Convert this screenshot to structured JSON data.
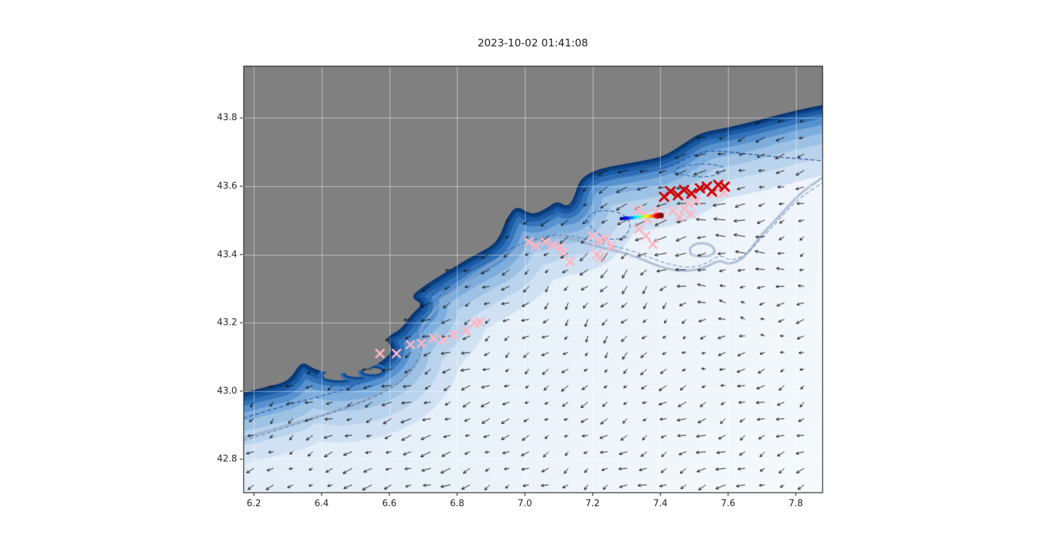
{
  "figure": {
    "background": "#ffffff"
  },
  "chart_data": {
    "type": "scatter",
    "subtype": "geographic-map-with-quiver",
    "title": "2023-10-02 01:41:08",
    "xlabel": "",
    "ylabel": "",
    "xlim": [
      6.169,
      7.878
    ],
    "ylim": [
      42.703,
      43.953
    ],
    "grid": true,
    "legend": "none",
    "xticks": {
      "values": [
        6.2,
        6.4,
        6.6,
        6.8,
        7.0,
        7.2,
        7.4,
        7.6,
        7.8
      ],
      "labels": [
        "6.2",
        "6.4",
        "6.6",
        "6.8",
        "7.0",
        "7.2",
        "7.4",
        "7.6",
        "7.8"
      ]
    },
    "yticks": {
      "values": [
        42.8,
        43.0,
        43.2,
        43.4,
        43.6,
        43.8
      ],
      "labels": [
        "42.8",
        "43.0",
        "43.2",
        "43.4",
        "43.6",
        "43.8"
      ]
    },
    "colors": {
      "land": "#808080",
      "frame": "#1f1f1f",
      "arrow": "#161616",
      "pink": "#ffb6c1",
      "red": "#d10000",
      "grid": "rgba(255,255,255,0.5)",
      "contour_dashed": "#27559e",
      "contour_solid": "#93a7c6",
      "ocean_gradient": [
        "#cfe0f0",
        "#e2edf8",
        "#eff5fb",
        "#f6fafd"
      ],
      "band_ramp": [
        "#cfe1f2",
        "#b9d3ec",
        "#9ec2e4",
        "#7daddc",
        "#5792cf",
        "#3273b9",
        "#1a5ba5",
        "#0d4489",
        "#083572"
      ],
      "band_widths": [
        200,
        150,
        110,
        80,
        56,
        38,
        24,
        13,
        6
      ]
    },
    "coastline": [
      [
        6.169,
        42.995
      ],
      [
        6.235,
        43.012
      ],
      [
        6.305,
        43.028
      ],
      [
        6.34,
        43.09
      ],
      [
        6.375,
        43.065
      ],
      [
        6.43,
        43.05
      ],
      [
        6.5,
        43.055
      ],
      [
        6.565,
        43.075
      ],
      [
        6.615,
        43.12
      ],
      [
        6.585,
        43.155
      ],
      [
        6.635,
        43.18
      ],
      [
        6.665,
        43.225
      ],
      [
        6.7,
        43.255
      ],
      [
        6.66,
        43.275
      ],
      [
        6.705,
        43.31
      ],
      [
        6.77,
        43.35
      ],
      [
        6.845,
        43.395
      ],
      [
        6.905,
        43.425
      ],
      [
        6.93,
        43.46
      ],
      [
        6.945,
        43.505
      ],
      [
        6.975,
        43.545
      ],
      [
        7.02,
        43.515
      ],
      [
        7.065,
        43.535
      ],
      [
        7.095,
        43.558
      ],
      [
        7.125,
        43.538
      ],
      [
        7.145,
        43.565
      ],
      [
        7.16,
        43.617
      ],
      [
        7.195,
        43.642
      ],
      [
        7.25,
        43.658
      ],
      [
        7.305,
        43.667
      ],
      [
        7.36,
        43.677
      ],
      [
        7.41,
        43.688
      ],
      [
        7.465,
        43.722
      ],
      [
        7.515,
        43.755
      ],
      [
        7.575,
        43.768
      ],
      [
        7.645,
        43.782
      ],
      [
        7.72,
        43.802
      ],
      [
        7.8,
        43.822
      ],
      [
        7.878,
        43.838
      ]
    ],
    "islands": [
      {
        "lon": 6.45,
        "lat": 43.045,
        "rx": 0.045,
        "ry": 0.014
      },
      {
        "lon": 6.505,
        "lat": 43.052,
        "rx": 0.035,
        "ry": 0.011
      },
      {
        "lon": 6.55,
        "lat": 43.058,
        "rx": 0.028,
        "ry": 0.009
      }
    ],
    "contour_dashed_path": [
      [
        6.169,
        42.92
      ],
      [
        6.28,
        42.955
      ],
      [
        6.4,
        42.985
      ],
      [
        6.5,
        43.015
      ],
      [
        6.585,
        43.06
      ],
      [
        6.64,
        43.11
      ],
      [
        6.615,
        43.15
      ],
      [
        6.66,
        43.19
      ],
      [
        6.7,
        43.24
      ],
      [
        6.73,
        43.29
      ],
      [
        6.79,
        43.34
      ],
      [
        6.86,
        43.385
      ],
      [
        6.915,
        43.415
      ],
      [
        6.94,
        43.45
      ],
      [
        6.96,
        43.49
      ],
      [
        6.99,
        43.525
      ],
      [
        7.03,
        43.5
      ],
      [
        7.07,
        43.515
      ],
      [
        7.11,
        43.525
      ],
      [
        7.145,
        43.55
      ],
      [
        7.17,
        43.59
      ],
      [
        7.21,
        43.615
      ],
      [
        7.27,
        43.63
      ],
      [
        7.33,
        43.64
      ],
      [
        7.39,
        43.65
      ],
      [
        7.44,
        43.66
      ],
      [
        7.49,
        43.69
      ],
      [
        7.545,
        43.705
      ],
      [
        7.61,
        43.7
      ],
      [
        7.7,
        43.69
      ],
      [
        7.79,
        43.682
      ],
      [
        7.878,
        43.675
      ]
    ],
    "contour_dashed_path2": [
      [
        6.169,
        42.855
      ],
      [
        6.3,
        42.895
      ],
      [
        6.46,
        42.945
      ],
      [
        6.6,
        43.0
      ],
      [
        6.67,
        43.06
      ],
      [
        6.7,
        43.13
      ],
      [
        6.67,
        43.19
      ],
      [
        6.72,
        43.25
      ],
      [
        6.77,
        43.3
      ],
      [
        6.84,
        43.35
      ],
      [
        6.91,
        43.395
      ],
      [
        6.975,
        43.425
      ],
      [
        7.03,
        43.445
      ],
      [
        7.09,
        43.46
      ],
      [
        7.14,
        43.455
      ],
      [
        7.2,
        43.44
      ],
      [
        7.26,
        43.425
      ],
      [
        7.32,
        43.41
      ],
      [
        7.37,
        43.39
      ],
      [
        7.43,
        43.37
      ],
      [
        7.49,
        43.36
      ],
      [
        7.54,
        43.375
      ],
      [
        7.575,
        43.4
      ],
      [
        7.61,
        43.38
      ],
      [
        7.655,
        43.4
      ],
      [
        7.69,
        43.44
      ],
      [
        7.73,
        43.48
      ],
      [
        7.77,
        43.525
      ],
      [
        7.81,
        43.565
      ],
      [
        7.878,
        43.61
      ]
    ],
    "contour_dashed_loops": [
      [
        [
          7.18,
          43.5
        ],
        [
          7.21,
          43.46
        ],
        [
          7.26,
          43.44
        ],
        [
          7.3,
          43.455
        ],
        [
          7.315,
          43.49
        ],
        [
          7.29,
          43.52
        ],
        [
          7.245,
          43.53
        ],
        [
          7.2,
          43.525
        ],
        [
          7.18,
          43.5
        ]
      ],
      [
        [
          7.44,
          43.64
        ],
        [
          7.5,
          43.625
        ],
        [
          7.56,
          43.63
        ],
        [
          7.6,
          43.65
        ],
        [
          7.56,
          43.665
        ],
        [
          7.5,
          43.665
        ],
        [
          7.45,
          43.655
        ],
        [
          7.44,
          43.64
        ]
      ]
    ],
    "contour_solid_path": [
      [
        6.169,
        42.862
      ],
      [
        6.3,
        42.9
      ],
      [
        6.44,
        42.94
      ],
      [
        6.56,
        42.985
      ],
      [
        6.655,
        43.045
      ],
      [
        6.7,
        43.11
      ],
      [
        6.685,
        43.175
      ],
      [
        6.73,
        43.235
      ],
      [
        6.78,
        43.285
      ],
      [
        6.85,
        43.34
      ],
      [
        6.92,
        43.385
      ],
      [
        6.98,
        43.415
      ],
      [
        7.03,
        43.44
      ],
      [
        7.08,
        43.455
      ],
      [
        7.13,
        43.45
      ],
      [
        7.19,
        43.43
      ],
      [
        7.25,
        43.415
      ],
      [
        7.31,
        43.4
      ],
      [
        7.36,
        43.38
      ],
      [
        7.41,
        43.36
      ],
      [
        7.47,
        43.35
      ],
      [
        7.53,
        43.36
      ],
      [
        7.575,
        43.385
      ],
      [
        7.6,
        43.37
      ],
      [
        7.64,
        43.385
      ],
      [
        7.67,
        43.42
      ],
      [
        7.7,
        43.46
      ],
      [
        7.74,
        43.5
      ],
      [
        7.78,
        43.545
      ],
      [
        7.82,
        43.585
      ],
      [
        7.878,
        43.625
      ]
    ],
    "contour_solid_loop": [
      [
        7.49,
        43.4
      ],
      [
        7.53,
        43.39
      ],
      [
        7.565,
        43.405
      ],
      [
        7.55,
        43.43
      ],
      [
        7.51,
        43.435
      ],
      [
        7.485,
        43.42
      ],
      [
        7.49,
        43.4
      ]
    ],
    "quiver": {
      "lon_start": 6.2,
      "lon_end": 7.865,
      "lon_step": 0.058,
      "lat_start": 42.725,
      "lat_end": 43.93,
      "lat_step": 0.0485,
      "base_u": -0.62,
      "base_v": -0.28,
      "eddy": {
        "lon": 7.44,
        "lat": 43.33,
        "radius": 0.18,
        "strength": 3.2
      },
      "noise": 0.22,
      "scale": 15,
      "min_len": 6,
      "max_len": 21
    },
    "series": [
      {
        "name": "pink-track-west",
        "marker": "x",
        "color": "#ffb6c1",
        "size": 5.5,
        "line_width": 2.8,
        "points": [
          [
            6.572,
            43.11
          ],
          [
            6.621,
            43.11
          ],
          [
            6.662,
            43.136
          ],
          [
            6.695,
            43.14
          ],
          [
            6.73,
            43.155
          ],
          [
            6.76,
            43.15
          ],
          [
            6.791,
            43.165
          ],
          [
            6.826,
            43.177
          ],
          [
            6.851,
            43.199
          ],
          [
            6.867,
            43.203
          ]
        ]
      },
      {
        "name": "pink-cluster-central",
        "marker": "x",
        "color": "#ffb6c1",
        "size": 5.5,
        "line_width": 2.8,
        "points": [
          [
            7.012,
            43.437
          ],
          [
            7.032,
            43.425
          ],
          [
            7.06,
            43.437
          ],
          [
            7.082,
            43.428
          ],
          [
            7.103,
            43.422
          ],
          [
            7.112,
            43.408
          ],
          [
            7.133,
            43.379
          ],
          [
            7.2,
            43.455
          ],
          [
            7.218,
            43.44
          ],
          [
            7.238,
            43.447
          ],
          [
            7.255,
            43.425
          ],
          [
            7.212,
            43.4
          ],
          [
            7.222,
            43.392
          ]
        ]
      },
      {
        "name": "pink-cluster-east",
        "marker": "x",
        "color": "#ffb6c1",
        "size": 5.5,
        "line_width": 2.8,
        "points": [
          [
            7.334,
            43.531
          ],
          [
            7.352,
            43.517
          ],
          [
            7.362,
            43.503
          ],
          [
            7.388,
            43.528
          ],
          [
            7.401,
            43.514
          ],
          [
            7.337,
            43.474
          ],
          [
            7.357,
            43.455
          ],
          [
            7.378,
            43.43
          ],
          [
            7.437,
            43.528
          ],
          [
            7.456,
            43.509
          ],
          [
            7.47,
            43.534
          ],
          [
            7.49,
            43.519
          ],
          [
            7.483,
            43.549
          ],
          [
            7.506,
            43.557
          ],
          [
            7.558,
            43.578
          ],
          [
            7.588,
            43.581
          ]
        ]
      },
      {
        "name": "red-track",
        "marker": "x",
        "color": "#d10000",
        "size": 6,
        "line_width": 3.2,
        "points": [
          [
            7.411,
            43.569
          ],
          [
            7.43,
            43.585
          ],
          [
            7.452,
            43.574
          ],
          [
            7.47,
            43.589
          ],
          [
            7.492,
            43.579
          ],
          [
            7.517,
            43.594
          ],
          [
            7.537,
            43.599
          ],
          [
            7.552,
            43.585
          ],
          [
            7.571,
            43.604
          ],
          [
            7.59,
            43.599
          ]
        ]
      },
      {
        "name": "trajectory-rainbow",
        "marker": "dot",
        "colormap": "jet",
        "size": 2.6,
        "end_size": 4,
        "points": [
          [
            7.285,
            43.505
          ],
          [
            7.293,
            43.506
          ],
          [
            7.301,
            43.507
          ],
          [
            7.309,
            43.507
          ],
          [
            7.317,
            43.508
          ],
          [
            7.325,
            43.509
          ],
          [
            7.333,
            43.51
          ],
          [
            7.341,
            43.511
          ],
          [
            7.349,
            43.511
          ],
          [
            7.357,
            43.512
          ],
          [
            7.365,
            43.512
          ],
          [
            7.373,
            43.512
          ],
          [
            7.381,
            43.513
          ],
          [
            7.389,
            43.513
          ],
          [
            7.396,
            43.514
          ],
          [
            7.402,
            43.514
          ]
        ]
      }
    ]
  }
}
